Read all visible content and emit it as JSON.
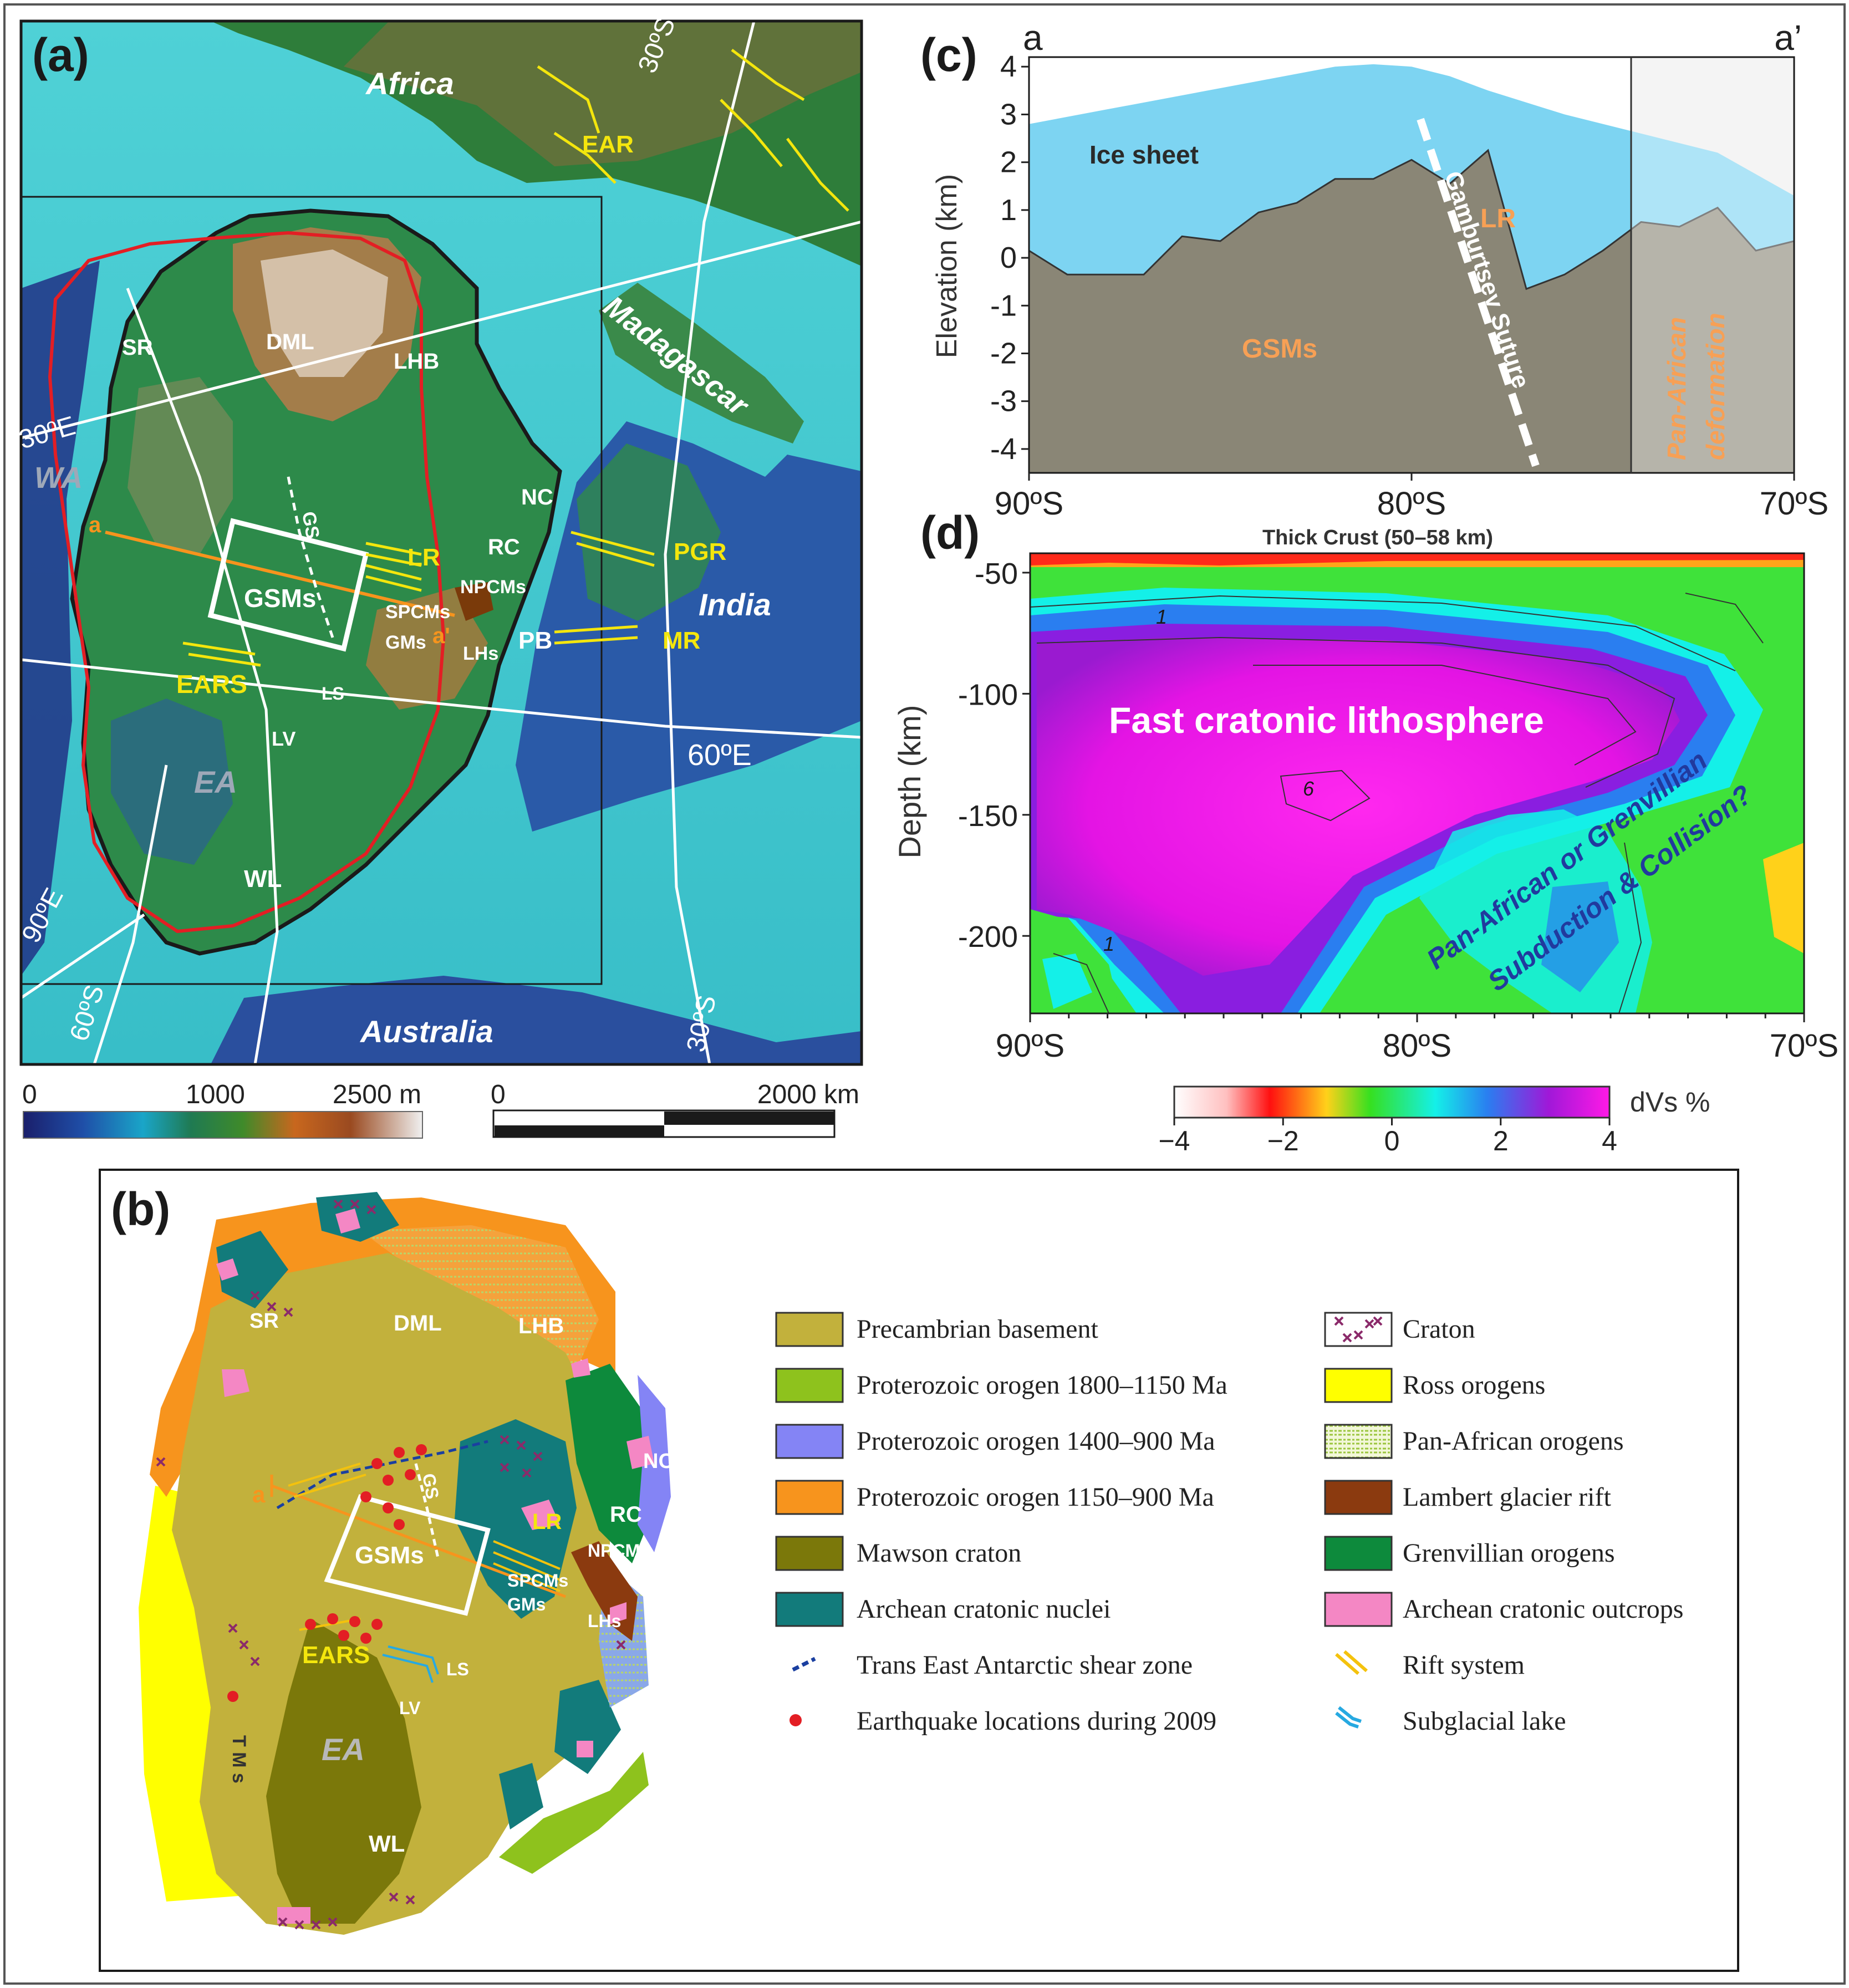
{
  "panels": {
    "a": {
      "label": "(a)",
      "place_labels": {
        "africa": "Africa",
        "madagascar": "Madagascar",
        "india": "India",
        "australia": "Australia",
        "ear": "EAR",
        "wa": "WA",
        "ea": "EA",
        "sr": "SR",
        "dml": "DML",
        "lhb": "LHB",
        "nc": "NC",
        "rc": "RC",
        "npcms": "NPCMs",
        "spcms": "SPCMs",
        "gms": "GMs",
        "lhs": "LHs",
        "pb": "PB",
        "mr": "MR",
        "pgr": "PGR",
        "lr": "LR",
        "gsms": "GSMs",
        "gs": "GS",
        "ears": "EARS",
        "ls": "LS",
        "lv": "LV",
        "wl": "WL",
        "a": "a",
        "a_prime": "a'"
      },
      "graticule_labels": {
        "lat30n": "30ºS",
        "lat30s": "30ºS",
        "e30": "30ºE",
        "e60": "60ºE",
        "e90": "90ºE",
        "s60": "60ºS"
      },
      "elevation_scale": {
        "min": "0",
        "mid": "1000",
        "max": "2500 m"
      },
      "distance_scale": {
        "min": "0",
        "max": "2000 km"
      }
    },
    "b": {
      "label": "(b)",
      "map_labels": {
        "sr": "SR",
        "dml": "DML",
        "lhb": "LHB",
        "nc": "NC",
        "rc": "RC",
        "lr": "LR",
        "npcms": "NPCMs",
        "spcms": "SPCMs",
        "gms": "GMs",
        "lhs": "LHs",
        "gsms": "GSMs",
        "gs": "GS",
        "ears": "EARS",
        "ls": "LS",
        "lv": "LV",
        "ea": "EA",
        "wl": "WL",
        "tms": "T M s",
        "a": "a"
      },
      "legend_left": [
        {
          "label": "Precambrian basement",
          "color": "#c2b13c"
        },
        {
          "label": "Proterozoic orogen 1800–1150 Ma",
          "color": "#8ec21d"
        },
        {
          "label": "Proterozoic orogen 1400–900 Ma",
          "color": "#8484f5"
        },
        {
          "label": "Proterozoic orogen 1150–900 Ma",
          "color": "#f7941d"
        },
        {
          "label": "Mawson craton",
          "color": "#7b780a"
        },
        {
          "label": "Archean cratonic nuclei",
          "color": "#127b7b"
        },
        {
          "label": "Trans East Antarctic shear zone",
          "color": "#1a3fa0"
        },
        {
          "label": "Earthquake locations during 2009",
          "color": "#e31e24"
        }
      ],
      "legend_right": [
        {
          "label": "Craton",
          "color": "#8b2a6a"
        },
        {
          "label": "Ross orogens",
          "color": "#ffff00"
        },
        {
          "label": "Pan-African orogens",
          "color": "#b8d66a"
        },
        {
          "label": "Lambert glacier rift",
          "color": "#8b3a0f"
        },
        {
          "label": "Grenvillian orogens",
          "color": "#0d8a3c"
        },
        {
          "label": "Archean cratonic outcrops",
          "color": "#f487c4"
        },
        {
          "label": "Rift system",
          "color": "#f4c20d"
        },
        {
          "label": "Subglacial lake",
          "color": "#27a9e1"
        }
      ]
    },
    "c": {
      "label": "(c)",
      "end_left": "a",
      "end_right": "a’",
      "ylabel": "Elevation (km)",
      "yticks": [
        "4",
        "3",
        "2",
        "1",
        "0",
        "-1",
        "-2",
        "-3",
        "-4"
      ],
      "xticks": [
        "90ºS",
        "80ºS",
        "70ºS"
      ],
      "annotations": {
        "ice": "Ice sheet",
        "gsms": "GSMs",
        "lr": "LR",
        "suture": "Gamburtsev Suture",
        "pan1": "Pan-African",
        "pan2": "deformation"
      }
    },
    "d": {
      "label": "(d)",
      "top_label": "Thick Crust (50–58 km)",
      "ylabel": "Depth (km)",
      "yticks": [
        "-50",
        "-100",
        "-150",
        "-200"
      ],
      "xticks": [
        "90ºS",
        "80ºS",
        "70ºS"
      ],
      "annotations": {
        "fast": "Fast cratonic lithosphere",
        "sub1": "Pan-African or Grenvillian",
        "sub2": "Subduction & Collision?",
        "c1": "1",
        "c6": "6",
        "c1b": "1"
      },
      "colorbar": {
        "title": "dVs %",
        "ticks": [
          "−4",
          "−2",
          "0",
          "2",
          "4"
        ]
      }
    }
  },
  "chart_data": {
    "type": "area",
    "title": "",
    "xlabel": "",
    "ylabel": "Elevation (km)",
    "xlim": [
      90,
      70
    ],
    "ylim": [
      -4.5,
      4.2
    ],
    "x_tick_labels": [
      "90ºS",
      "80ºS",
      "70ºS"
    ],
    "series": [
      {
        "name": "Ice sheet",
        "x": [
          90,
          88,
          86,
          84,
          82,
          81,
          80,
          79,
          78,
          76,
          74,
          72,
          70
        ],
        "values": [
          2.8,
          3.1,
          3.4,
          3.7,
          4.0,
          4.05,
          4.0,
          3.8,
          3.5,
          3.0,
          2.6,
          2.2,
          1.3
        ]
      },
      {
        "name": "GSMs",
        "x": [
          90,
          89,
          88,
          87,
          86,
          85,
          84,
          83,
          82,
          81,
          80,
          79,
          78,
          77,
          76,
          75,
          74,
          73,
          72,
          71,
          70
        ],
        "values": [
          0.0,
          -0.2,
          -0.5,
          -0.2,
          0.3,
          0.5,
          0.8,
          1.3,
          1.5,
          1.8,
          1.9,
          1.7,
          2.1,
          -0.5,
          -0.5,
          0.3,
          0.6,
          0.8,
          0.9,
          0.3,
          0.2
        ]
      }
    ]
  }
}
